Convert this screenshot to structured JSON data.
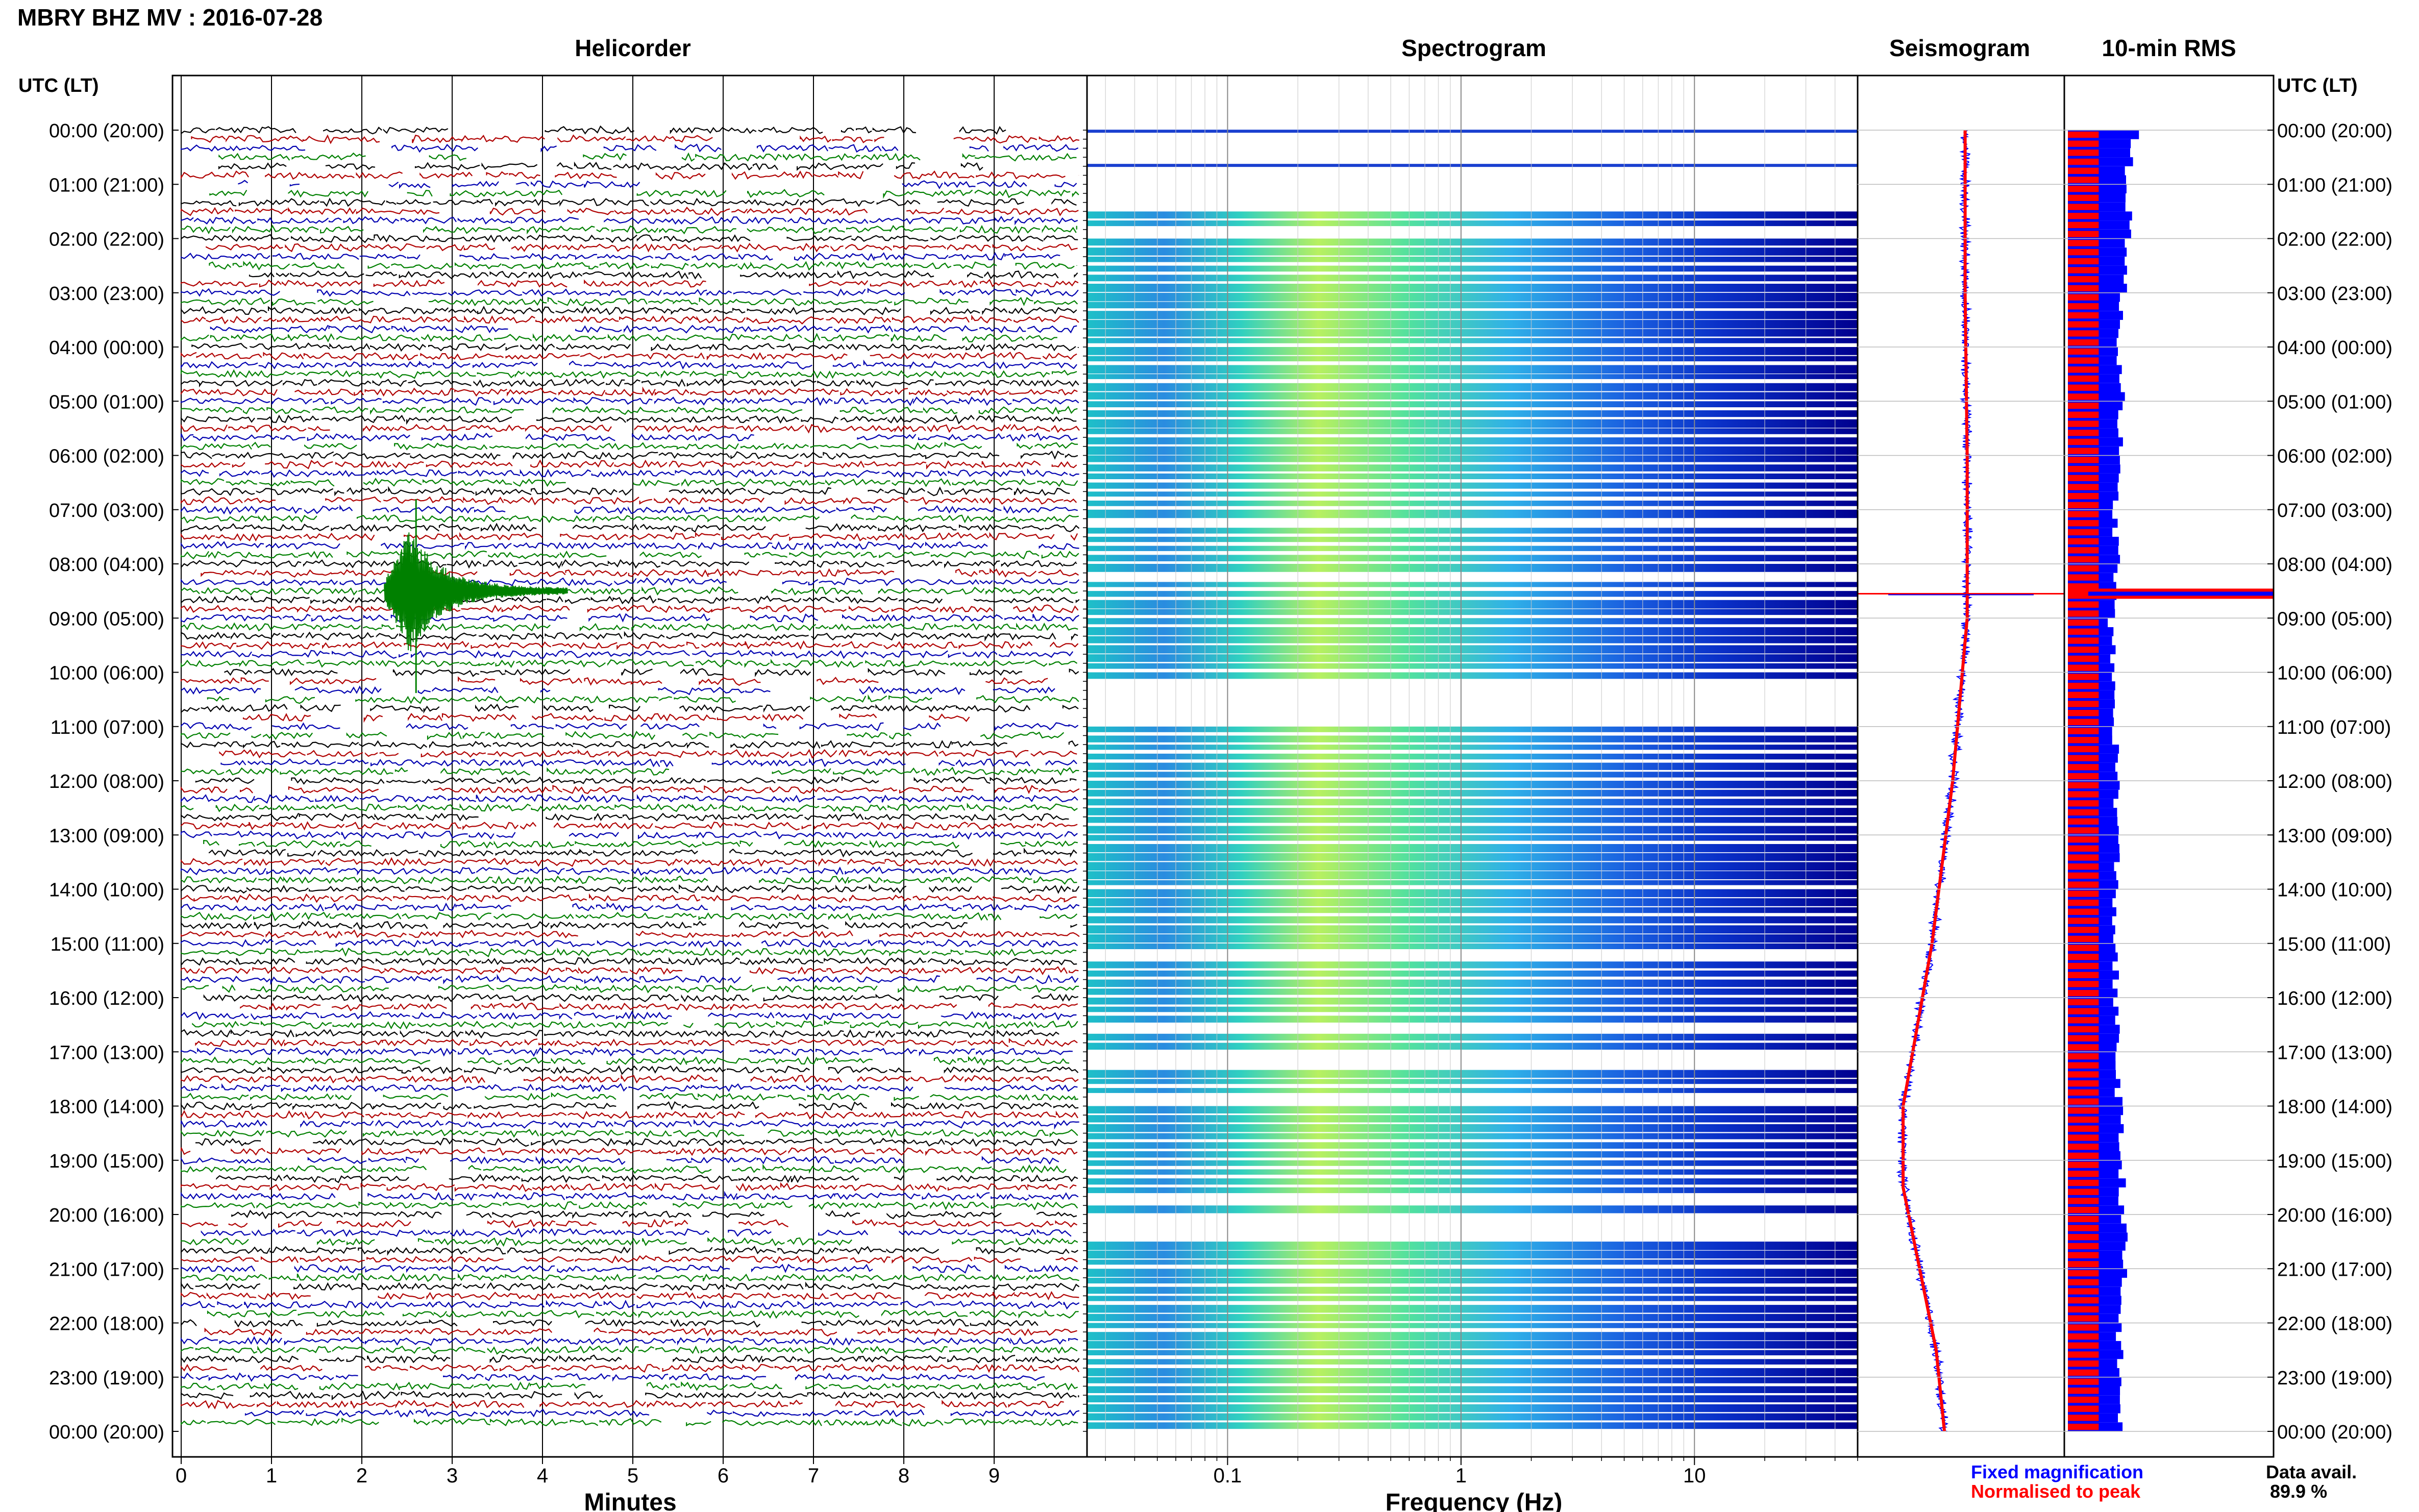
{
  "header": {
    "station_title": "MBRY BHZ MV : 2016-07-28"
  },
  "panels": {
    "helicorder": "Helicorder",
    "spectrogram": "Spectrogram",
    "seismogram": "Seismogram",
    "rms": "10-min RMS"
  },
  "axis": {
    "left_label": "UTC (LT)",
    "right_label": "UTC (LT)",
    "minutes_label": "Minutes",
    "frequency_label": "Frequency (Hz)"
  },
  "legend": {
    "fixed": "Fixed magnification",
    "normalised": "Normalised to peak"
  },
  "data_avail": {
    "label": "Data avail.",
    "value": "89.9 %"
  },
  "colors": {
    "trace_cycle": [
      "#000000",
      "#b00000",
      "#0000b0",
      "#008000"
    ],
    "fixed": "#0000ff",
    "normalised": "#ff0000",
    "spectro_low": "#00008f",
    "spectro_high": "#e8f040"
  },
  "chart_data": [
    {
      "type": "line",
      "title": "Helicorder",
      "xlabel": "Minutes",
      "x_ticks": [
        "0",
        "1",
        "2",
        "3",
        "4",
        "5",
        "6",
        "7",
        "8",
        "9"
      ],
      "xlim": [
        0,
        10
      ],
      "time_labels": [
        "00:00 (20:00)",
        "01:00 (21:00)",
        "02:00 (22:00)",
        "03:00 (23:00)",
        "04:00 (00:00)",
        "05:00 (01:00)",
        "06:00 (02:00)",
        "07:00 (03:00)",
        "08:00 (04:00)",
        "09:00 (05:00)",
        "10:00 (06:00)",
        "11:00 (07:00)",
        "12:00 (08:00)",
        "13:00 (09:00)",
        "14:00 (10:00)",
        "15:00 (11:00)",
        "16:00 (12:00)",
        "17:00 (13:00)",
        "18:00 (14:00)",
        "19:00 (15:00)",
        "20:00 (16:00)",
        "21:00 (17:00)",
        "22:00 (18:00)",
        "23:00 (19:00)",
        "00:00 (20:00)"
      ],
      "rows": 144,
      "event": {
        "row": 51,
        "minute": 2.6
      }
    },
    {
      "type": "heatmap",
      "title": "Spectrogram",
      "xlabel": "Frequency (Hz)",
      "x_scale": "log",
      "xlim": [
        0.025,
        50
      ],
      "x_ticks": [
        "0.1",
        "1",
        "10"
      ],
      "gap_rows_hours": [
        [
          0.05,
          0.55
        ],
        [
          0.7,
          1.45
        ],
        [
          1.8,
          1.9
        ],
        [
          10.1,
          11.0
        ],
        [
          20.05,
          20.5
        ],
        [
          24.0,
          24.0
        ]
      ]
    },
    {
      "type": "line",
      "title": "Seismogram",
      "series": [
        {
          "name": "Fixed magnification",
          "color": "#0000ff"
        },
        {
          "name": "Normalised to peak",
          "color": "#ff0000"
        }
      ],
      "offset_curve": [
        [
          0,
          0.52
        ],
        [
          3,
          0.52
        ],
        [
          6,
          0.53
        ],
        [
          9,
          0.53
        ],
        [
          12,
          0.46
        ],
        [
          15,
          0.36
        ],
        [
          18,
          0.22
        ],
        [
          19.5,
          0.22
        ],
        [
          21,
          0.3
        ],
        [
          22.5,
          0.38
        ],
        [
          24,
          0.42
        ]
      ],
      "spike_hour": 8.55
    },
    {
      "type": "bar",
      "title": "10-min RMS",
      "series": [
        {
          "name": "Fixed magnification",
          "color": "#0000ff"
        },
        {
          "name": "Normalised to peak",
          "color": "#ff0000"
        }
      ],
      "fixed_level_by_hour": [
        [
          0,
          0.32
        ],
        [
          1,
          0.29
        ],
        [
          2,
          0.3
        ],
        [
          3,
          0.26
        ],
        [
          4,
          0.25
        ],
        [
          5,
          0.27
        ],
        [
          6,
          0.24
        ],
        [
          7,
          0.23
        ],
        [
          8,
          0.24
        ],
        [
          9,
          0.21
        ],
        [
          10,
          0.22
        ],
        [
          11,
          0.23
        ],
        [
          12,
          0.24
        ],
        [
          13,
          0.24
        ],
        [
          14,
          0.23
        ],
        [
          15,
          0.23
        ],
        [
          16,
          0.23
        ],
        [
          17,
          0.24
        ],
        [
          18,
          0.25
        ],
        [
          19,
          0.26
        ],
        [
          20,
          0.27
        ],
        [
          21,
          0.27
        ],
        [
          22,
          0.25
        ],
        [
          23,
          0.25
        ],
        [
          24,
          0.26
        ]
      ],
      "normalised_level": 0.15,
      "peak_hour": 8.55
    }
  ]
}
